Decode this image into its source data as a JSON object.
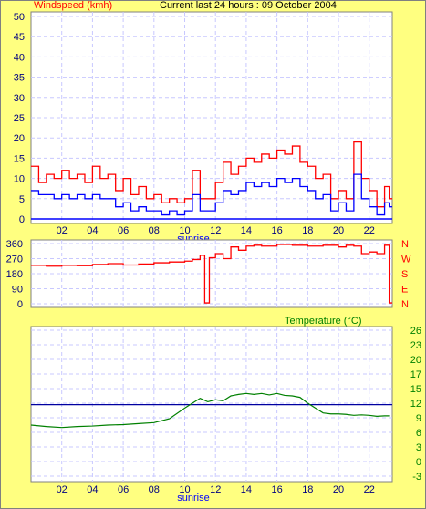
{
  "window": {
    "background_color": "#ffff80",
    "plot_background_color": "#ffffff"
  },
  "chart_data": [
    {
      "type": "line",
      "title": "Current last 24 hours : 09 October 2004",
      "ylabel": "Windspeed (kmh)",
      "ylim": [
        0,
        50
      ],
      "yticks": [
        "0",
        "5",
        "10",
        "15",
        "20",
        "25",
        "30",
        "35",
        "40",
        "45",
        "50"
      ],
      "xticks": [
        "02",
        "04",
        "06",
        "08",
        "10",
        "12",
        "14",
        "16",
        "18",
        "20",
        "22"
      ],
      "x_annotation": "sunrise",
      "x_range_hours": [
        0,
        23.5
      ],
      "grid": true,
      "series": [
        {
          "color": "#ff0000",
          "x": [
            0,
            0.5,
            1,
            1.5,
            2,
            2.5,
            3,
            3.5,
            4,
            4.5,
            5,
            5.5,
            6,
            6.5,
            7,
            7.5,
            8,
            8.5,
            9,
            9.5,
            10,
            10.5,
            11,
            11.5,
            12,
            12.5,
            13,
            13.5,
            14,
            14.5,
            15,
            15.5,
            16,
            16.5,
            17,
            17.5,
            18,
            18.5,
            19,
            19.5,
            20,
            20.5,
            21,
            21.5,
            22,
            22.5,
            23,
            23.3
          ],
          "y": [
            13,
            9,
            11,
            10,
            12,
            10,
            11,
            9,
            13,
            10,
            11,
            7,
            10,
            6,
            8,
            5,
            6,
            4,
            5,
            4,
            5,
            12,
            5,
            5,
            9,
            14,
            11,
            13,
            15,
            14,
            16,
            15,
            17,
            16,
            18,
            14,
            13,
            10,
            11,
            5,
            7,
            5,
            19,
            10,
            7,
            3,
            8,
            5
          ]
        },
        {
          "color": "#0000ff",
          "x": [
            0,
            0.5,
            1,
            1.5,
            2,
            2.5,
            3,
            3.5,
            4,
            4.5,
            5,
            5.5,
            6,
            6.5,
            7,
            7.5,
            8,
            8.5,
            9,
            9.5,
            10,
            10.5,
            11,
            11.5,
            12,
            12.5,
            13,
            13.5,
            14,
            14.5,
            15,
            15.5,
            16,
            16.5,
            17,
            17.5,
            18,
            18.5,
            19,
            19.5,
            20,
            20.5,
            21,
            21.5,
            22,
            22.5,
            23,
            23.3
          ],
          "y": [
            7,
            6,
            6,
            5,
            6,
            5,
            6,
            5,
            6,
            5,
            5,
            3,
            4,
            2,
            3,
            2,
            2,
            1,
            2,
            1,
            2,
            6,
            2,
            2,
            4,
            7,
            6,
            7,
            9,
            8,
            9,
            8,
            10,
            9,
            10,
            8,
            7,
            5,
            6,
            2,
            4,
            2,
            11,
            5,
            3,
            1,
            4,
            3
          ]
        }
      ]
    },
    {
      "type": "line",
      "title": "",
      "yticks": [
        "0",
        "90",
        "180",
        "270",
        "360"
      ],
      "ylim": [
        0,
        360
      ],
      "y2ticks": [
        "N",
        "W",
        "S",
        "E",
        "N"
      ],
      "xticks": [],
      "grid": true,
      "series": [
        {
          "color": "#ff0000",
          "x": [
            0,
            1,
            2,
            3,
            4,
            5,
            6,
            7,
            8,
            9,
            10,
            10.5,
            11,
            11.3,
            11.6,
            12,
            12.5,
            13,
            13.5,
            14,
            14.5,
            15,
            16,
            17,
            18,
            19,
            20,
            20.5,
            21,
            21.5,
            22,
            22.5,
            23,
            23.3
          ],
          "y": [
            230,
            225,
            230,
            228,
            235,
            240,
            232,
            238,
            245,
            250,
            255,
            265,
            290,
            5,
            275,
            300,
            270,
            340,
            320,
            345,
            350,
            345,
            355,
            350,
            345,
            350,
            340,
            350,
            345,
            300,
            310,
            300,
            350,
            5
          ]
        }
      ]
    },
    {
      "type": "line",
      "title": "Temperature (°C)",
      "ylim": [
        -3,
        26
      ],
      "y2ticks": [
        "26",
        "23",
        "20",
        "17",
        "15",
        "12",
        "9",
        "6",
        "3",
        "0",
        "-3"
      ],
      "xticks": [
        "02",
        "04",
        "06",
        "08",
        "10",
        "12",
        "14",
        "16",
        "18",
        "20",
        "22"
      ],
      "x_annotation": "sunrise",
      "x_range_hours": [
        0,
        23.5
      ],
      "grid": true,
      "reference_line": {
        "value": 11.7,
        "color": "#0000a0"
      },
      "series": [
        {
          "color": "#008000",
          "x": [
            0,
            1,
            2,
            3,
            4,
            5,
            6,
            7,
            8,
            9,
            10,
            10.5,
            11,
            11.5,
            12,
            12.5,
            13,
            13.5,
            14,
            14.5,
            15,
            15.5,
            16,
            16.5,
            17,
            17.5,
            18,
            18.5,
            19,
            19.5,
            20,
            20.5,
            21,
            21.5,
            22,
            22.5,
            23,
            23.3
          ],
          "y": [
            7.5,
            7.2,
            7.0,
            7.2,
            7.3,
            7.5,
            7.6,
            7.8,
            8.0,
            8.8,
            11.0,
            12.0,
            13.0,
            12.3,
            12.7,
            12.5,
            13.5,
            13.8,
            14.0,
            13.8,
            14.0,
            13.7,
            14.0,
            13.6,
            13.5,
            13.2,
            12.0,
            11.0,
            10.0,
            9.8,
            9.8,
            9.7,
            9.5,
            9.6,
            9.5,
            9.3,
            9.4,
            9.4
          ]
        }
      ]
    }
  ]
}
